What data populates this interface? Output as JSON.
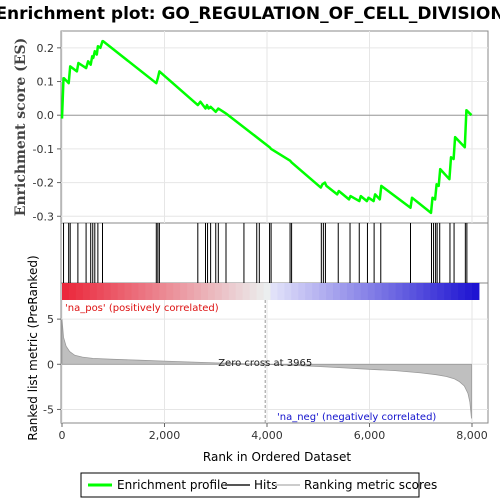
{
  "chart_data": {
    "type": "line",
    "title": "Enrichment plot: GO_REGULATION_OF_CELL_DIVISION",
    "xlabel": "Rank in Ordered Dataset",
    "es_panel": {
      "ylabel": "Enrichment score (ES)",
      "ylim": [
        -0.32,
        0.25
      ],
      "yticks": [
        0.2,
        0.1,
        0.0,
        -0.1,
        -0.2,
        -0.3
      ],
      "series": [
        {
          "name": "Enrichment profile",
          "color": "#00ff00",
          "x": [
            0,
            30,
            40,
            130,
            160,
            290,
            320,
            470,
            510,
            560,
            590,
            610,
            640,
            680,
            700,
            750,
            790,
            800,
            1840,
            1870,
            1900,
            2650,
            2700,
            2800,
            2830,
            2860,
            2900,
            3000,
            3050,
            3150,
            3200,
            4050,
            4080,
            4450,
            4480,
            5050,
            5080,
            5130,
            5160,
            5370,
            5400,
            5600,
            5630,
            5800,
            5830,
            5950,
            5980,
            6080,
            6110,
            6200,
            6230,
            6800,
            6830,
            7200,
            7230,
            7280,
            7310,
            7350,
            7380,
            7560,
            7590,
            7640,
            7670,
            7860,
            7890,
            7990
          ],
          "y": [
            -0.01,
            0.11,
            0.11,
            0.095,
            0.145,
            0.13,
            0.155,
            0.14,
            0.16,
            0.15,
            0.175,
            0.17,
            0.19,
            0.18,
            0.205,
            0.2,
            0.22,
            0.22,
            0.095,
            0.11,
            0.13,
            0.03,
            0.04,
            0.02,
            0.03,
            0.02,
            0.025,
            0.01,
            0.02,
            0.01,
            0.005,
            -0.095,
            -0.1,
            -0.135,
            -0.14,
            -0.215,
            -0.205,
            -0.2,
            -0.21,
            -0.235,
            -0.225,
            -0.25,
            -0.24,
            -0.255,
            -0.24,
            -0.255,
            -0.245,
            -0.255,
            -0.235,
            -0.25,
            -0.21,
            -0.275,
            -0.245,
            -0.29,
            -0.245,
            -0.25,
            -0.205,
            -0.21,
            -0.16,
            -0.19,
            -0.125,
            -0.13,
            -0.065,
            -0.095,
            0.015,
            0.0
          ]
        }
      ]
    },
    "hits_panel": {
      "legend": "Hits",
      "ranks": [
        30,
        130,
        160,
        310,
        470,
        560,
        600,
        640,
        700,
        790,
        1840,
        1870,
        1900,
        2650,
        2800,
        2840,
        2900,
        3000,
        3050,
        3200,
        3550,
        3800,
        3850,
        4050,
        4080,
        4450,
        4480,
        5060,
        5100,
        5140,
        5390,
        5620,
        5800,
        5960,
        6090,
        6220,
        6800,
        7210,
        7250,
        7290,
        7320,
        7370,
        7570,
        7650,
        7870,
        7900
      ]
    },
    "rank_panel": {
      "ylabel": "Ranked list metric (PreRanked)",
      "legend": "Ranking metric scores",
      "ylim": [
        -6.5,
        9
      ],
      "yticks": [
        5,
        0,
        -5
      ],
      "zero_cross_label": "Zero cross at 3965",
      "zero_cross": 3965,
      "pos_label": "'na_pos' (positively correlated)",
      "neg_label": "'na_neg' (negatively correlated)",
      "curve": {
        "x": [
          0,
          30,
          80,
          150,
          250,
          400,
          600,
          1000,
          1500,
          2000,
          2500,
          3000,
          3500,
          3965,
          4500,
          5000,
          5500,
          6000,
          6500,
          7000,
          7300,
          7500,
          7650,
          7750,
          7850,
          7920,
          7960,
          7990
        ],
        "y": [
          5.0,
          3.0,
          2.0,
          1.4,
          1.0,
          0.8,
          0.65,
          0.55,
          0.45,
          0.35,
          0.25,
          0.15,
          0.07,
          0.0,
          -0.12,
          -0.25,
          -0.4,
          -0.55,
          -0.7,
          -0.95,
          -1.15,
          -1.35,
          -1.6,
          -1.9,
          -2.4,
          -3.2,
          -4.2,
          -6.0
        ]
      }
    },
    "xlim": [
      0,
      8000
    ],
    "xticks": [
      0,
      2000,
      4000,
      6000,
      8000
    ],
    "xtick_labels": [
      "0",
      "2,000",
      "4,000",
      "6,000",
      "8,000"
    ],
    "legend": [
      {
        "label": "Enrichment profile",
        "color": "#00ff00"
      },
      {
        "label": "Hits",
        "color": "#555555"
      },
      {
        "label": "Ranking metric scores",
        "color": "#cccccc"
      }
    ]
  }
}
